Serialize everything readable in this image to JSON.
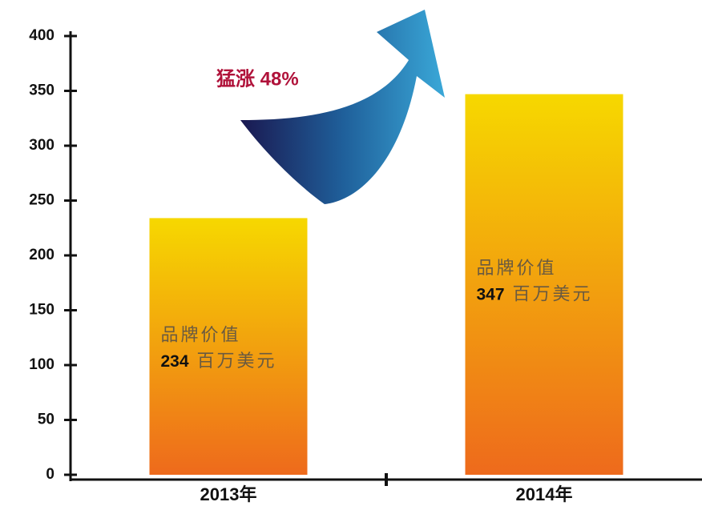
{
  "chart_data": {
    "type": "bar",
    "categories": [
      "2013年",
      "2014年"
    ],
    "values": [
      234,
      347
    ],
    "bar_label_title": "品牌价值",
    "unit": "百万美元",
    "annotation": "猛涨 48%",
    "colors": [
      "#f6d800",
      "#ee6a1c"
    ],
    "ylim": [
      0,
      400
    ],
    "yticks": [
      0,
      50,
      100,
      150,
      200,
      250,
      300,
      350,
      400
    ]
  }
}
